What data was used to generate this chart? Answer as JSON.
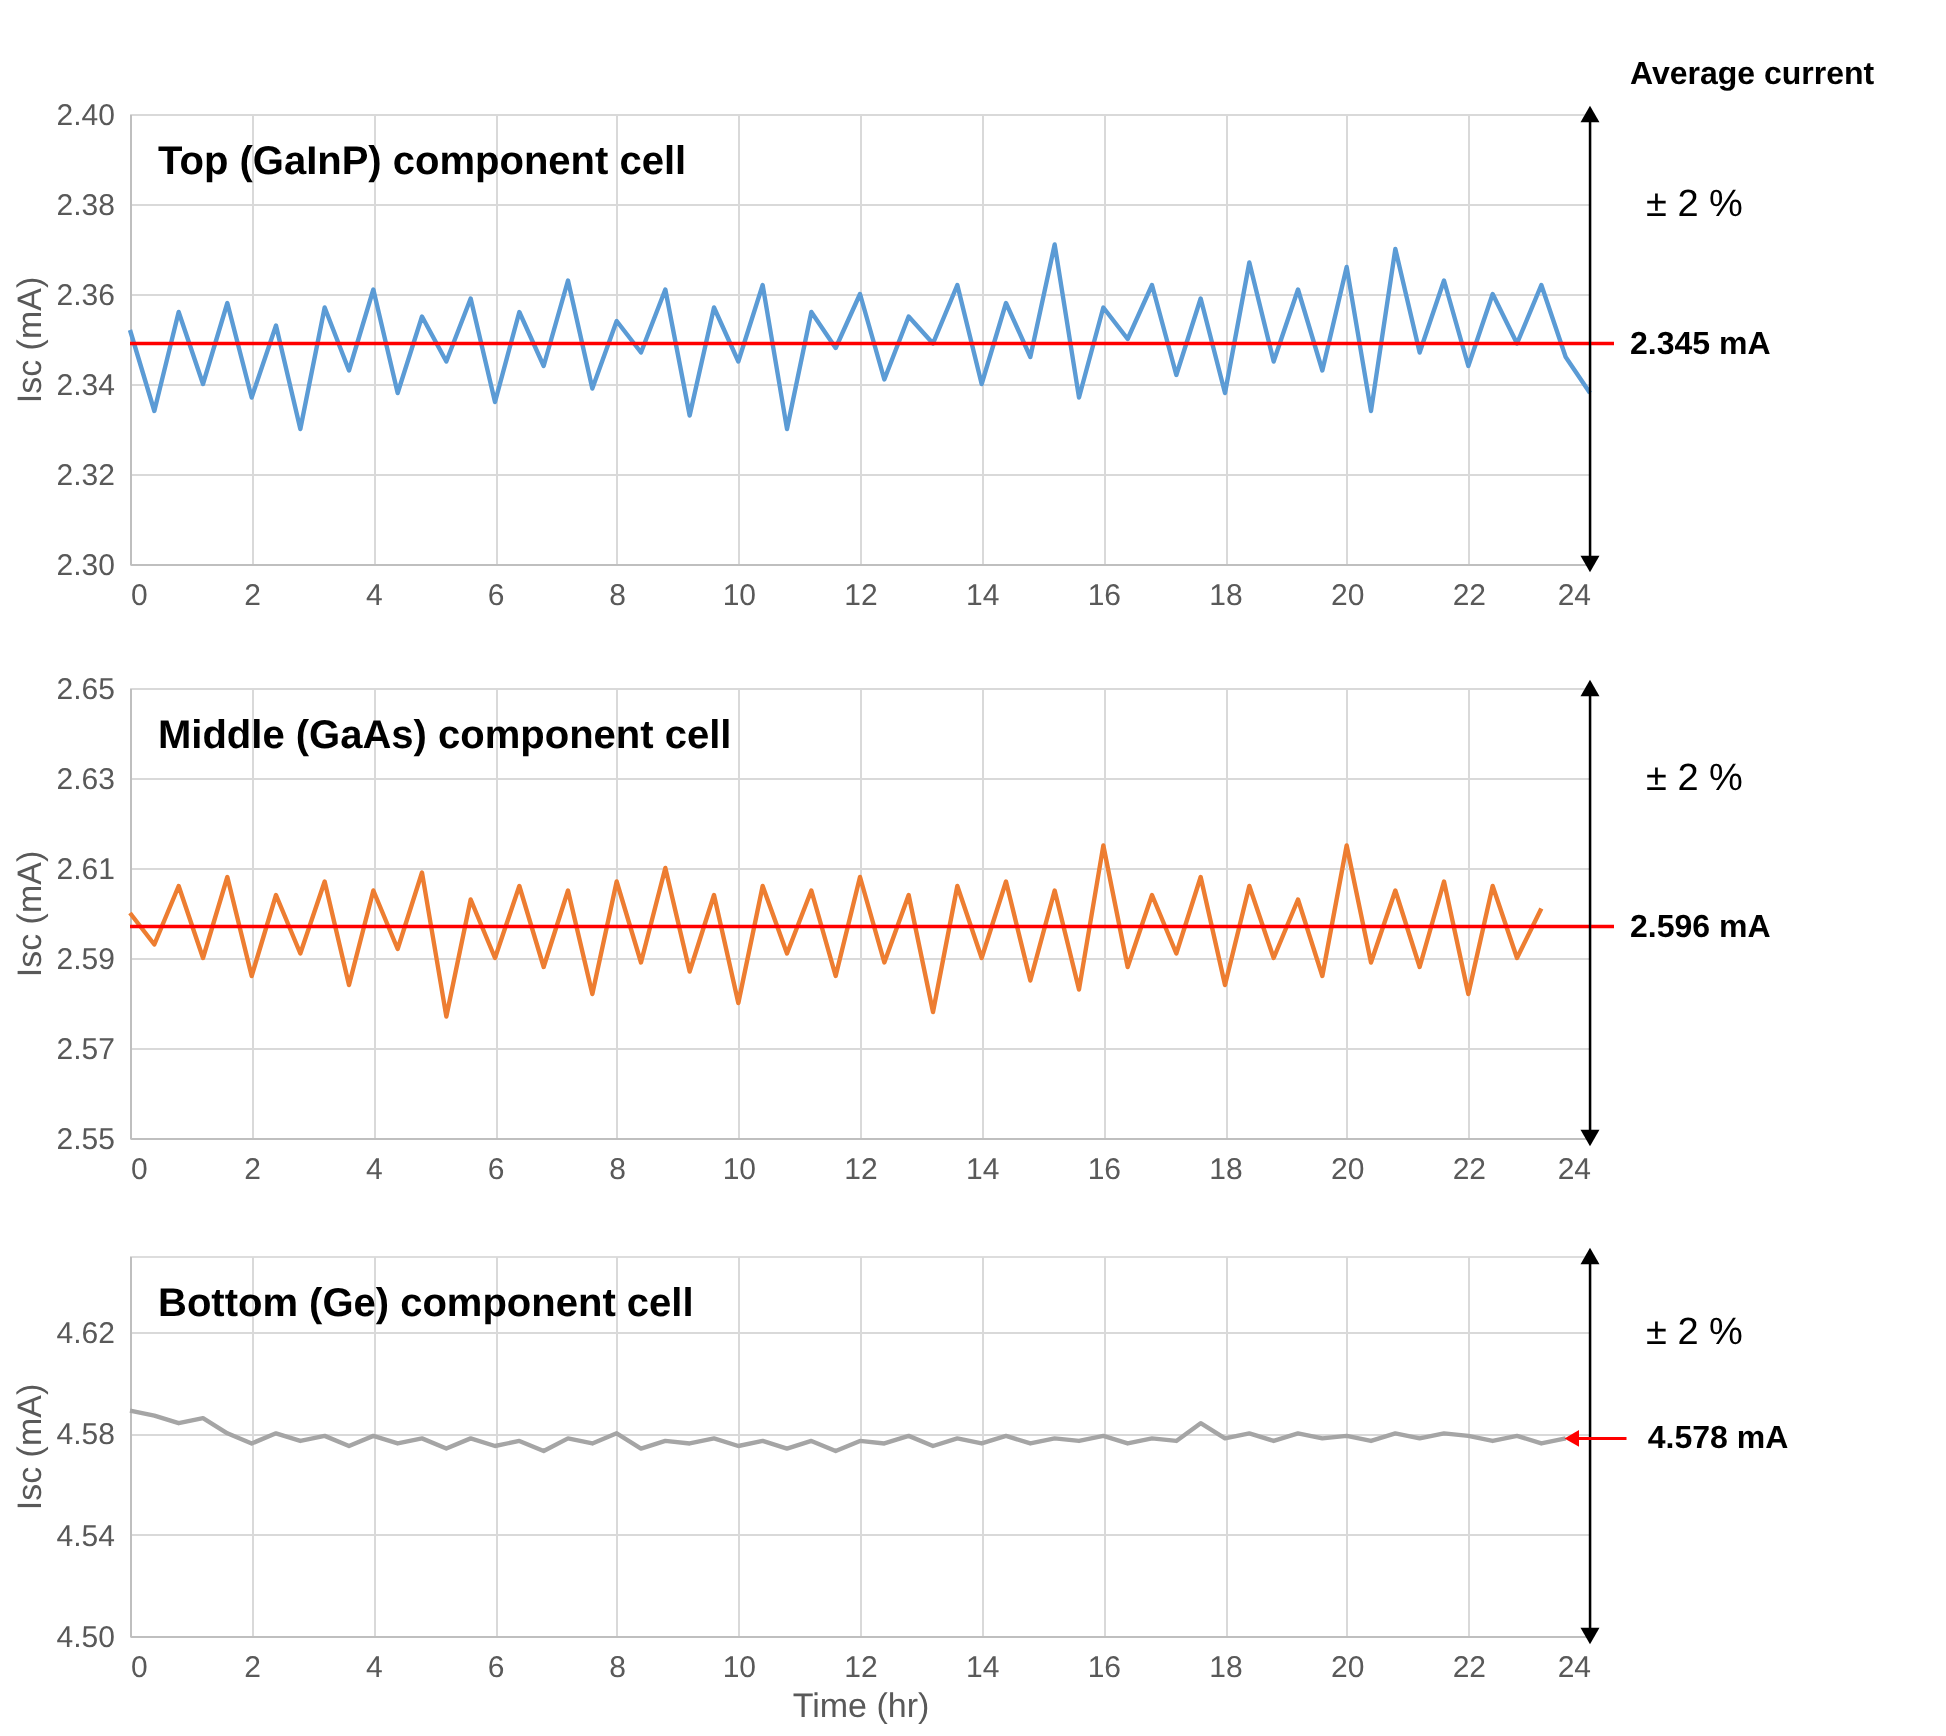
{
  "chart_data": [
    {
      "type": "line",
      "title": "Top (GaInP) component cell",
      "ylabel": "Isc (mA)",
      "ylim": [
        2.3,
        2.4
      ],
      "yticks": [
        {
          "value": 2.3,
          "label": "2.30"
        },
        2.32,
        2.34,
        2.36,
        2.38,
        {
          "value": 2.4,
          "label": "2.40"
        }
      ],
      "xlim": [
        0,
        24
      ],
      "xticks": [
        0,
        2,
        4,
        6,
        8,
        10,
        12,
        14,
        16,
        18,
        20,
        22,
        24
      ],
      "grid": true,
      "marker": "none",
      "line_style": "solid",
      "annotations": [
        "Average current",
        "± 2 %"
      ],
      "ref_lines": [
        {
          "axis": "y",
          "value": 2.349,
          "label": "2.345 mA",
          "color": "#ff0000"
        }
      ],
      "series": [
        {
          "color": "#5b9bd5",
          "x": [
            0,
            0.4,
            0.8,
            1.2,
            1.6,
            2,
            2.4,
            2.8,
            3.2,
            3.6,
            4,
            4.4,
            4.8,
            5.2,
            5.6,
            6,
            6.4,
            6.8,
            7.2,
            7.6,
            8,
            8.4,
            8.8,
            9.2,
            9.6,
            10,
            10.4,
            10.8,
            11.2,
            11.6,
            12,
            12.4,
            12.8,
            13.2,
            13.6,
            14,
            14.4,
            14.8,
            15.2,
            15.6,
            16,
            16.4,
            16.8,
            17.2,
            17.6,
            18,
            18.4,
            18.8,
            19.2,
            19.6,
            20,
            20.4,
            20.8,
            21.2,
            21.6,
            22,
            22.4,
            22.8,
            23.2,
            23.6,
            24
          ],
          "values": [
            2.352,
            2.334,
            2.356,
            2.34,
            2.358,
            2.337,
            2.353,
            2.33,
            2.357,
            2.343,
            2.361,
            2.338,
            2.355,
            2.345,
            2.359,
            2.336,
            2.356,
            2.344,
            2.363,
            2.339,
            2.354,
            2.347,
            2.361,
            2.333,
            2.357,
            2.345,
            2.362,
            2.33,
            2.356,
            2.348,
            2.36,
            2.341,
            2.355,
            2.349,
            2.362,
            2.34,
            2.358,
            2.346,
            2.371,
            2.337,
            2.357,
            2.35,
            2.362,
            2.342,
            2.359,
            2.338,
            2.367,
            2.345,
            2.361,
            2.343,
            2.366,
            2.334,
            2.37,
            2.347,
            2.363,
            2.344,
            2.36,
            2.349,
            2.362,
            2.346,
            2.338
          ]
        }
      ]
    },
    {
      "type": "line",
      "title": "Middle (GaAs) component cell",
      "ylabel": "Isc (mA)",
      "ylim": [
        2.55,
        2.65
      ],
      "yticks": [
        2.55,
        2.57,
        2.59,
        2.61,
        2.63,
        2.65
      ],
      "xlim": [
        0,
        24
      ],
      "xticks": [
        0,
        2,
        4,
        6,
        8,
        10,
        12,
        14,
        16,
        18,
        20,
        22,
        24
      ],
      "grid": true,
      "marker": "none",
      "line_style": "solid",
      "annotations": [
        "± 2 %"
      ],
      "ref_lines": [
        {
          "axis": "y",
          "value": 2.597,
          "label": "2.596 mA",
          "color": "#ff0000"
        }
      ],
      "series": [
        {
          "color": "#ed7d31",
          "x": [
            0,
            0.4,
            0.8,
            1.2,
            1.6,
            2,
            2.4,
            2.8,
            3.2,
            3.6,
            4,
            4.4,
            4.8,
            5.2,
            5.6,
            6,
            6.4,
            6.8,
            7.2,
            7.6,
            8,
            8.4,
            8.8,
            9.2,
            9.6,
            10,
            10.4,
            10.8,
            11.2,
            11.6,
            12,
            12.4,
            12.8,
            13.2,
            13.6,
            14,
            14.4,
            14.8,
            15.2,
            15.6,
            16,
            16.4,
            16.8,
            17.2,
            17.6,
            18,
            18.4,
            18.8,
            19.2,
            19.6,
            20,
            20.4,
            20.8,
            21.2,
            21.6,
            22,
            22.4,
            22.8,
            23.2
          ],
          "values": [
            2.6,
            2.593,
            2.606,
            2.59,
            2.608,
            2.586,
            2.604,
            2.591,
            2.607,
            2.584,
            2.605,
            2.592,
            2.609,
            2.577,
            2.603,
            2.59,
            2.606,
            2.588,
            2.605,
            2.582,
            2.607,
            2.589,
            2.61,
            2.587,
            2.604,
            2.58,
            2.606,
            2.591,
            2.605,
            2.586,
            2.608,
            2.589,
            2.604,
            2.578,
            2.606,
            2.59,
            2.607,
            2.585,
            2.605,
            2.583,
            2.615,
            2.588,
            2.604,
            2.591,
            2.608,
            2.584,
            2.606,
            2.59,
            2.603,
            2.586,
            2.615,
            2.589,
            2.605,
            2.588,
            2.607,
            2.582,
            2.606,
            2.59,
            2.601
          ]
        }
      ]
    },
    {
      "type": "line",
      "title": "Bottom (Ge) component cell",
      "xlabel": "Time (hr)",
      "ylabel": "Isc (mA)",
      "ylim": [
        4.5,
        4.65
      ],
      "yticks": [
        {
          "value": 4.5,
          "label": "4.50"
        },
        4.54,
        4.58,
        4.62
      ],
      "xlim": [
        0,
        24
      ],
      "xticks": [
        0,
        2,
        4,
        6,
        8,
        10,
        12,
        14,
        16,
        18,
        20,
        22,
        24
      ],
      "grid": true,
      "marker": "none",
      "line_style": "solid",
      "annotations": [
        "± 2 %",
        {
          "text": "4.578 mA",
          "x": 23.7,
          "y": 4.578
        }
      ],
      "series": [
        {
          "color": "#a5a5a5",
          "x": [
            0,
            0.4,
            0.8,
            1.2,
            1.6,
            2,
            2.4,
            2.8,
            3.2,
            3.6,
            4,
            4.4,
            4.8,
            5.2,
            5.6,
            6,
            6.4,
            6.8,
            7.2,
            7.6,
            8,
            8.4,
            8.8,
            9.2,
            9.6,
            10,
            10.4,
            10.8,
            11.2,
            11.6,
            12,
            12.4,
            12.8,
            13.2,
            13.6,
            14,
            14.4,
            14.8,
            15.2,
            15.6,
            16,
            16.4,
            16.8,
            17.2,
            17.6,
            18,
            18.4,
            18.8,
            19.2,
            19.6,
            20,
            20.4,
            20.8,
            21.2,
            21.6,
            22,
            22.4,
            22.8,
            23.2,
            23.6
          ],
          "values": [
            4.589,
            4.587,
            4.584,
            4.586,
            4.58,
            4.576,
            4.58,
            4.577,
            4.579,
            4.575,
            4.579,
            4.576,
            4.578,
            4.574,
            4.578,
            4.575,
            4.577,
            4.573,
            4.578,
            4.576,
            4.58,
            4.574,
            4.577,
            4.576,
            4.578,
            4.575,
            4.577,
            4.574,
            4.577,
            4.573,
            4.577,
            4.576,
            4.579,
            4.575,
            4.578,
            4.576,
            4.579,
            4.576,
            4.578,
            4.577,
            4.579,
            4.576,
            4.578,
            4.577,
            4.584,
            4.578,
            4.58,
            4.577,
            4.58,
            4.578,
            4.579,
            4.577,
            4.58,
            4.578,
            4.58,
            4.579,
            4.577,
            4.579,
            4.576,
            4.578
          ]
        }
      ]
    }
  ]
}
